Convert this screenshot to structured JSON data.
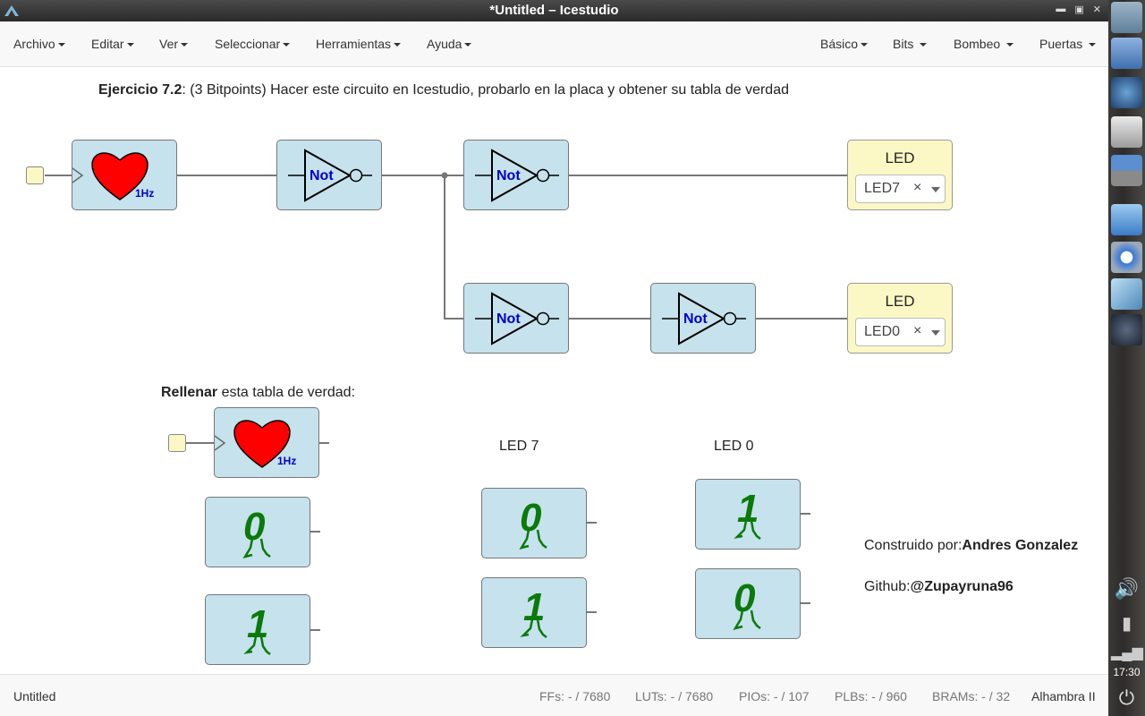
{
  "window": {
    "title": "*Untitled – Icestudio"
  },
  "menu": {
    "left": [
      "Archivo",
      "Editar",
      "Ver",
      "Seleccionar",
      "Herramientas",
      "Ayuda"
    ],
    "right": [
      "Básico",
      "Bits",
      "Bombeo",
      "Puertas"
    ]
  },
  "canvas": {
    "heading_bold": "Ejercicio 7.2",
    "heading_rest": ": (3 Bitpoints) Hacer este circuito en Icestudio, probarlo en la placa y obtener su tabla de verdad",
    "clock_label": "1Hz",
    "not_label": "Not",
    "led_title": "LED",
    "led7_value": "LED7",
    "led0_value": "LED0",
    "clear_symbol": "×",
    "table_bold": "Rellenar",
    "table_rest": " esta tabla de verdad:",
    "col_led7": "LED 7",
    "col_led0": "LED 0",
    "digit_zero": "0",
    "digit_one": "1",
    "credit_prefix": "Construido por:",
    "credit_name": "Andres Gonzalez",
    "github_prefix": "Github:",
    "github_user": "@Zupayruna96"
  },
  "status": {
    "file": "Untitled",
    "ffs": "FFs:  - / 7680",
    "luts": "LUTs:  - / 7680",
    "pios": "PIOs:  - / 107",
    "plbs": "PLBs:  - / 960",
    "brams": "BRAMs:  - / 32",
    "board": "Alhambra II"
  },
  "dock": {
    "clock": "17:30"
  },
  "colors": {
    "block": "#c6e2ec",
    "led": "#fbf8c5",
    "heart": "#ff0000",
    "not_text": "#0000cc",
    "digit": "#0a7a0a"
  }
}
